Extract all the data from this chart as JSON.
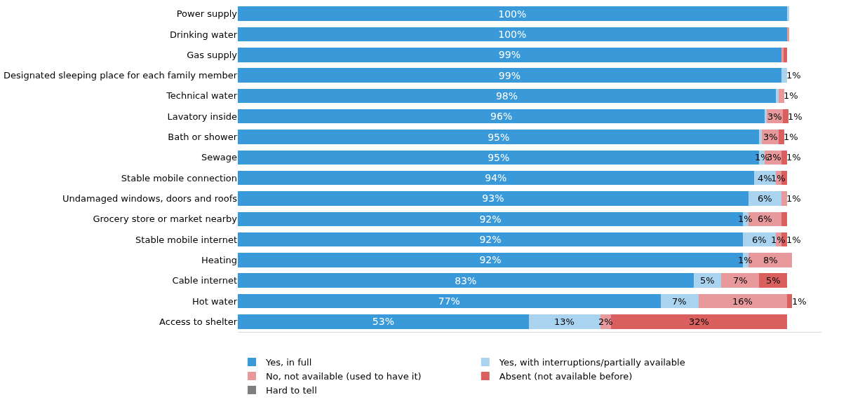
{
  "chart_data": {
    "type": "bar",
    "orientation": "horizontal",
    "stacked": true,
    "legend": "bottom",
    "categories": [
      "Power supply",
      "Drinking water",
      "Gas supply",
      "Designated sleeping place for each family member",
      "Technical water",
      "Lavatory inside",
      "Bath or shower",
      "Sewage",
      "Stable mobile connection",
      "Undamaged windows, doors and roofs",
      "Grocery store or market nearby",
      "Stable mobile internet",
      "Heating",
      "Cable internet",
      "Hot water",
      "Access to shelter"
    ],
    "series": [
      {
        "name": "Yes, in full",
        "color": "#3a9ad9",
        "values": [
          100,
          100,
          99,
          99,
          98,
          96,
          95,
          95,
          94,
          93,
          92,
          92,
          92,
          83,
          77,
          53
        ],
        "value_labels": [
          "100%",
          "100%",
          "99%",
          "99%",
          "98%",
          "96%",
          "95%",
          "95%",
          "94%",
          "93%",
          "92%",
          "92%",
          "92%",
          "83%",
          "77%",
          "53%"
        ]
      },
      {
        "name": "Yes, with interruptions/partially available",
        "color": "#a9d3ef",
        "values": [
          0.5,
          null,
          null,
          1,
          0.5,
          0.3,
          0.5,
          1,
          4,
          6,
          1,
          6,
          1,
          5,
          7,
          13
        ],
        "value_labels": [
          null,
          null,
          null,
          "1%",
          null,
          null,
          null,
          "1%",
          "4%",
          "6%",
          "1%",
          "6%",
          "1%",
          "5%",
          "7%",
          "13%"
        ]
      },
      {
        "name": "No, not available (used to have it)",
        "color": "#e8999b",
        "values": [
          null,
          0.5,
          0.4,
          null,
          1,
          3,
          3,
          3,
          1,
          1,
          6,
          1,
          8,
          7,
          16,
          2
        ],
        "value_labels": [
          null,
          null,
          null,
          null,
          "1%",
          "3%",
          "3%",
          "3%",
          "1%",
          "1%",
          "6%",
          "1%",
          "8%",
          "7%",
          "16%",
          "2%"
        ]
      },
      {
        "name": "Absent (not available before)",
        "color": "#d9605f",
        "values": [
          null,
          null,
          0.6,
          null,
          null,
          1,
          1,
          1,
          1,
          null,
          1,
          1,
          null,
          5,
          1,
          32
        ],
        "value_labels": [
          null,
          null,
          null,
          null,
          null,
          "1%",
          "1%",
          "1%",
          null,
          null,
          null,
          "1%",
          null,
          "5%",
          "1%",
          "32%"
        ]
      },
      {
        "name": "Hard to tell",
        "color": "#7f7f7f",
        "values": [
          null,
          null,
          null,
          null,
          null,
          null,
          null,
          null,
          null,
          null,
          null,
          null,
          null,
          null,
          null,
          null
        ]
      }
    ]
  }
}
